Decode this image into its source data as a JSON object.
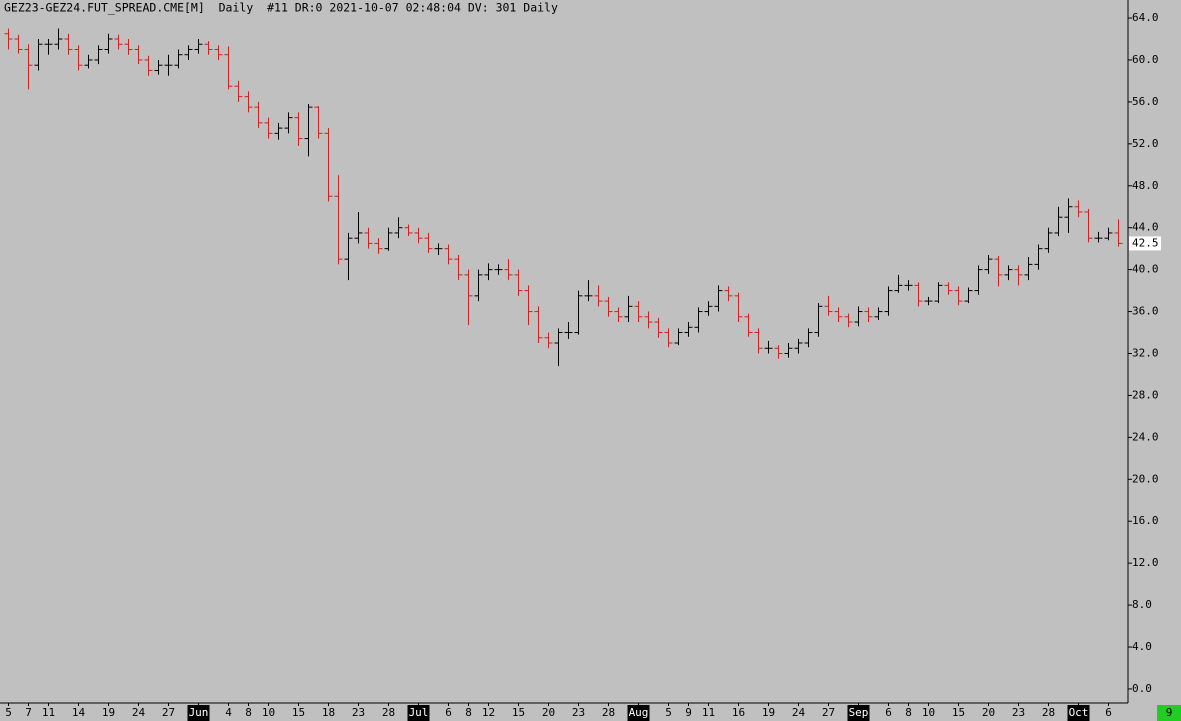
{
  "chart_data": {
    "type": "ohlc",
    "title": "GEZ23-GEZ24.FUT_SPREAD.CME[M]  Daily  #11 DR:0 2021-10-07 02:48:04 DV: 301 Daily",
    "categories": [
      "5",
      null,
      "7",
      null,
      "11",
      null,
      null,
      "14",
      null,
      null,
      "19",
      null,
      null,
      "24",
      null,
      null,
      "27",
      null,
      null,
      "Jun",
      null,
      null,
      "4",
      null,
      "8",
      null,
      "10",
      null,
      null,
      "15",
      null,
      null,
      "18",
      null,
      null,
      "23",
      null,
      null,
      "28",
      null,
      null,
      "Jul",
      null,
      null,
      "6",
      null,
      "8",
      null,
      "12",
      null,
      null,
      "15",
      null,
      null,
      "20",
      null,
      null,
      "23",
      null,
      null,
      "28",
      null,
      null,
      "Aug",
      null,
      null,
      "5",
      null,
      "9",
      null,
      "11",
      null,
      null,
      "16",
      null,
      null,
      "19",
      null,
      null,
      "24",
      null,
      null,
      "27",
      null,
      null,
      "Sep",
      null,
      null,
      "6",
      null,
      "8",
      null,
      "10",
      null,
      null,
      "15",
      null,
      null,
      "20",
      null,
      null,
      "23",
      null,
      null,
      "28",
      null,
      null,
      "Oct",
      null,
      null,
      "6",
      null
    ],
    "open": [
      62.5,
      62.0,
      61.0,
      59.5,
      61.5,
      61.5,
      62.0,
      61.0,
      59.5,
      60.0,
      61.0,
      62.0,
      61.5,
      61.0,
      60.0,
      59.0,
      59.5,
      59.5,
      60.5,
      61.0,
      61.5,
      61.0,
      60.5,
      57.5,
      56.5,
      55.5,
      54.0,
      53.0,
      53.5,
      54.5,
      52.5,
      55.5,
      53.0,
      47.0,
      41.0,
      43.0,
      43.5,
      42.5,
      42.0,
      43.5,
      44.0,
      43.5,
      43.0,
      42.0,
      42.0,
      41.0,
      39.5,
      37.5,
      39.5,
      40.0,
      40.0,
      39.5,
      38.0,
      36.0,
      33.5,
      33.0,
      34.0,
      34.0,
      37.5,
      37.5,
      37.0,
      36.0,
      35.5,
      36.5,
      35.5,
      35.0,
      34.0,
      33.0,
      34.0,
      34.5,
      36.0,
      36.5,
      38.0,
      37.5,
      35.5,
      34.0,
      32.5,
      32.5,
      32.0,
      32.5,
      33.0,
      34.0,
      36.5,
      36.0,
      35.5,
      35.0,
      36.0,
      35.5,
      36.0,
      38.0,
      38.5,
      38.5,
      37.0,
      37.0,
      38.5,
      38.0,
      37.0,
      38.0,
      40.0,
      41.0,
      39.5,
      40.0,
      39.5,
      40.5,
      42.0,
      43.5,
      45.0,
      46.0,
      45.5,
      43.0,
      43.0,
      43.5
    ],
    "high": [
      63.0,
      62.4,
      61.5,
      62.0,
      62.0,
      63.0,
      62.5,
      61.4,
      60.5,
      61.4,
      62.5,
      62.4,
      62.0,
      61.4,
      60.4,
      60.0,
      60.5,
      61.0,
      61.4,
      62.0,
      61.8,
      61.4,
      61.3,
      58.0,
      57.0,
      56.0,
      54.5,
      54.0,
      55.0,
      55.0,
      55.8,
      55.6,
      53.5,
      49.0,
      43.5,
      45.5,
      44.0,
      43.0,
      44.0,
      45.0,
      44.3,
      44.0,
      43.5,
      42.5,
      42.4,
      41.4,
      40.0,
      40.0,
      40.6,
      40.5,
      41.0,
      40.0,
      38.5,
      36.5,
      34.0,
      34.4,
      35.0,
      38.0,
      39.0,
      38.5,
      37.4,
      36.4,
      37.5,
      37.0,
      36.0,
      35.4,
      34.4,
      34.4,
      35.0,
      36.4,
      37.0,
      38.5,
      38.4,
      37.8,
      35.8,
      34.4,
      33.2,
      32.8,
      33.0,
      33.4,
      34.4,
      36.8,
      37.5,
      36.4,
      35.8,
      36.5,
      36.4,
      36.4,
      38.4,
      39.5,
      39.0,
      38.8,
      37.4,
      38.8,
      38.8,
      38.4,
      38.3,
      40.4,
      41.4,
      41.3,
      40.4,
      40.4,
      41.2,
      42.4,
      44.0,
      46.0,
      46.8,
      46.6,
      45.8,
      43.6,
      44.0,
      44.8
    ],
    "low": [
      61.0,
      60.6,
      57.2,
      59.0,
      60.5,
      61.0,
      60.5,
      59.0,
      59.2,
      59.6,
      60.6,
      61.0,
      60.5,
      59.6,
      58.5,
      58.6,
      58.5,
      59.2,
      60.0,
      60.6,
      60.5,
      60.0,
      57.2,
      56.0,
      55.0,
      53.5,
      52.5,
      52.4,
      53.0,
      51.8,
      50.8,
      52.5,
      46.5,
      40.5,
      39.0,
      42.5,
      42.0,
      41.5,
      41.8,
      43.0,
      43.2,
      42.5,
      41.6,
      41.4,
      40.5,
      39.0,
      34.7,
      37.0,
      39.0,
      39.5,
      39.0,
      37.5,
      34.7,
      33.0,
      32.5,
      30.8,
      33.4,
      33.8,
      37.0,
      36.5,
      35.5,
      35.0,
      35.0,
      35.0,
      34.4,
      33.5,
      32.6,
      32.8,
      33.6,
      34.0,
      35.6,
      36.0,
      37.0,
      35.0,
      33.6,
      32.0,
      32.0,
      31.5,
      31.6,
      32.0,
      32.6,
      33.6,
      35.6,
      35.0,
      34.5,
      34.6,
      35.0,
      35.2,
      35.6,
      37.8,
      38.0,
      36.5,
      36.6,
      36.8,
      37.6,
      36.6,
      36.8,
      37.6,
      39.6,
      38.4,
      39.0,
      38.5,
      39.0,
      40.0,
      41.6,
      43.2,
      43.5,
      45.0,
      42.6,
      42.6,
      42.8,
      42.2
    ],
    "close": [
      62.0,
      61.0,
      59.5,
      61.5,
      61.5,
      62.0,
      61.0,
      59.5,
      60.0,
      61.0,
      62.0,
      61.5,
      61.0,
      60.0,
      59.0,
      59.5,
      59.5,
      60.5,
      61.0,
      61.5,
      61.0,
      60.5,
      57.5,
      56.5,
      55.5,
      54.0,
      53.0,
      53.5,
      54.5,
      52.5,
      55.5,
      53.0,
      47.0,
      41.0,
      43.0,
      43.5,
      42.5,
      42.0,
      43.5,
      44.0,
      43.5,
      43.0,
      42.0,
      42.0,
      41.0,
      39.5,
      37.5,
      39.5,
      40.0,
      40.0,
      39.5,
      38.0,
      36.0,
      33.5,
      33.0,
      34.0,
      34.0,
      37.5,
      37.5,
      37.0,
      36.0,
      35.5,
      36.5,
      35.5,
      35.0,
      34.0,
      33.0,
      34.0,
      34.5,
      36.0,
      36.5,
      38.0,
      37.5,
      35.5,
      34.0,
      32.5,
      32.5,
      32.0,
      32.5,
      33.0,
      34.0,
      36.5,
      36.0,
      35.5,
      35.0,
      36.0,
      35.5,
      36.0,
      38.0,
      38.5,
      38.5,
      37.0,
      37.0,
      38.5,
      38.0,
      37.0,
      38.0,
      40.0,
      41.0,
      39.5,
      40.0,
      39.5,
      40.5,
      42.0,
      43.5,
      45.0,
      46.0,
      45.5,
      43.0,
      43.0,
      43.5,
      42.5
    ],
    "up_color": "#000000",
    "down_color": "#cc2222",
    "last_price": {
      "value": 42.5,
      "label": "42.5"
    },
    "ylim": [
      -1.34,
      65.72
    ],
    "yticks": [
      {
        "value": 0,
        "label": "0.0"
      },
      {
        "value": 4,
        "label": "4.0"
      },
      {
        "value": 8,
        "label": "8.0"
      },
      {
        "value": 12,
        "label": "12.0"
      },
      {
        "value": 16,
        "label": "16.0"
      },
      {
        "value": 20,
        "label": "20.0"
      },
      {
        "value": 24,
        "label": "24.0"
      },
      {
        "value": 28,
        "label": "28.0"
      },
      {
        "value": 32,
        "label": "32.0"
      },
      {
        "value": 36,
        "label": "36.0"
      },
      {
        "value": 40,
        "label": "40.0"
      },
      {
        "value": 44,
        "label": "44.0"
      },
      {
        "value": 48,
        "label": "48.0"
      },
      {
        "value": 52,
        "label": "52.0"
      },
      {
        "value": 56,
        "label": "56.0"
      },
      {
        "value": 60,
        "label": "60.0"
      },
      {
        "value": 64,
        "label": "64.0"
      }
    ],
    "badge": "9"
  }
}
